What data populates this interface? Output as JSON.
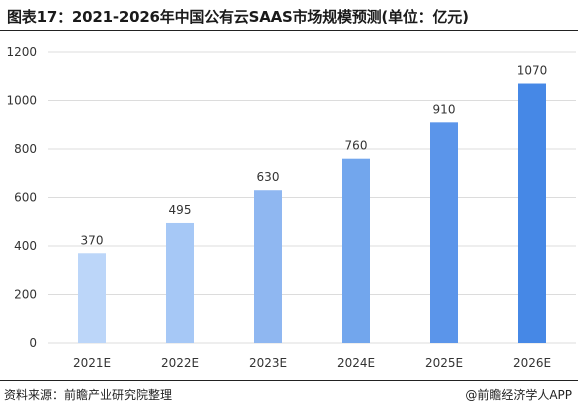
{
  "title": "图表17：2021-2026年中国公有云SAAS市场规模预测(单位：亿元)",
  "footer": {
    "source": "资料来源：前瞻产业研究院整理",
    "brand": "@前瞻经济学人APP"
  },
  "chart_data": {
    "type": "bar",
    "title": "图表17：2021-2026年中国公有云SAAS市场规模预测(单位：亿元)",
    "categories": [
      "2021E",
      "2022E",
      "2023E",
      "2024E",
      "2025E",
      "2026E"
    ],
    "values": [
      370,
      495,
      630,
      760,
      910,
      1070
    ],
    "data_labels": [
      "370",
      "495",
      "630",
      "760",
      "910",
      "1070"
    ],
    "yticks": [
      0,
      200,
      400,
      600,
      800,
      1000,
      1200
    ],
    "ytick_labels": [
      "0",
      "200",
      "400",
      "600",
      "800",
      "1000",
      "1200"
    ],
    "ylim": [
      0,
      1200
    ],
    "grid": true,
    "legend": "none",
    "colors": [
      "#bcd6f9",
      "#a6c8f6",
      "#8fb7f1",
      "#72a6ed",
      "#5b95ea",
      "#4688e6"
    ],
    "grid_color": "#dcdcdc"
  }
}
